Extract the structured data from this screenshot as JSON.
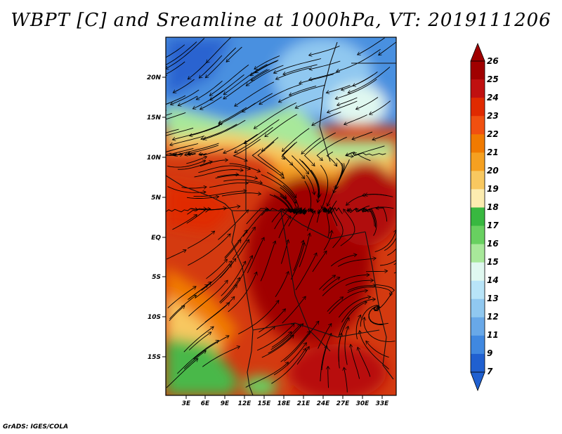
{
  "title": "WBPT [C] and Sreamline at 1000hPa, VT: 2019111206",
  "credit": "GrADS: IGES/COLA",
  "map": {
    "lat_ticks": [
      "20N",
      "15N",
      "10N",
      "5N",
      "EQ",
      "5S",
      "10S",
      "15S"
    ],
    "lon_ticks": [
      "3E",
      "6E",
      "9E",
      "12E",
      "15E",
      "18E",
      "21E",
      "24E",
      "27E",
      "30E",
      "33E"
    ]
  },
  "colorbar": {
    "levels": [
      "26",
      "25",
      "24",
      "23",
      "22",
      "21",
      "20",
      "19",
      "18",
      "17",
      "16",
      "15",
      "14",
      "13",
      "12",
      "11",
      "9",
      "7"
    ],
    "colors": [
      "#a00000",
      "#c01010",
      "#e02a00",
      "#f05010",
      "#f07a00",
      "#f5a020",
      "#f8c860",
      "#fcecb0",
      "#38b840",
      "#68d060",
      "#a8e89a",
      "#e0f8f0",
      "#b8e4f8",
      "#90c8f0",
      "#68a8e8",
      "#4088e0",
      "#2060d0"
    ]
  }
}
